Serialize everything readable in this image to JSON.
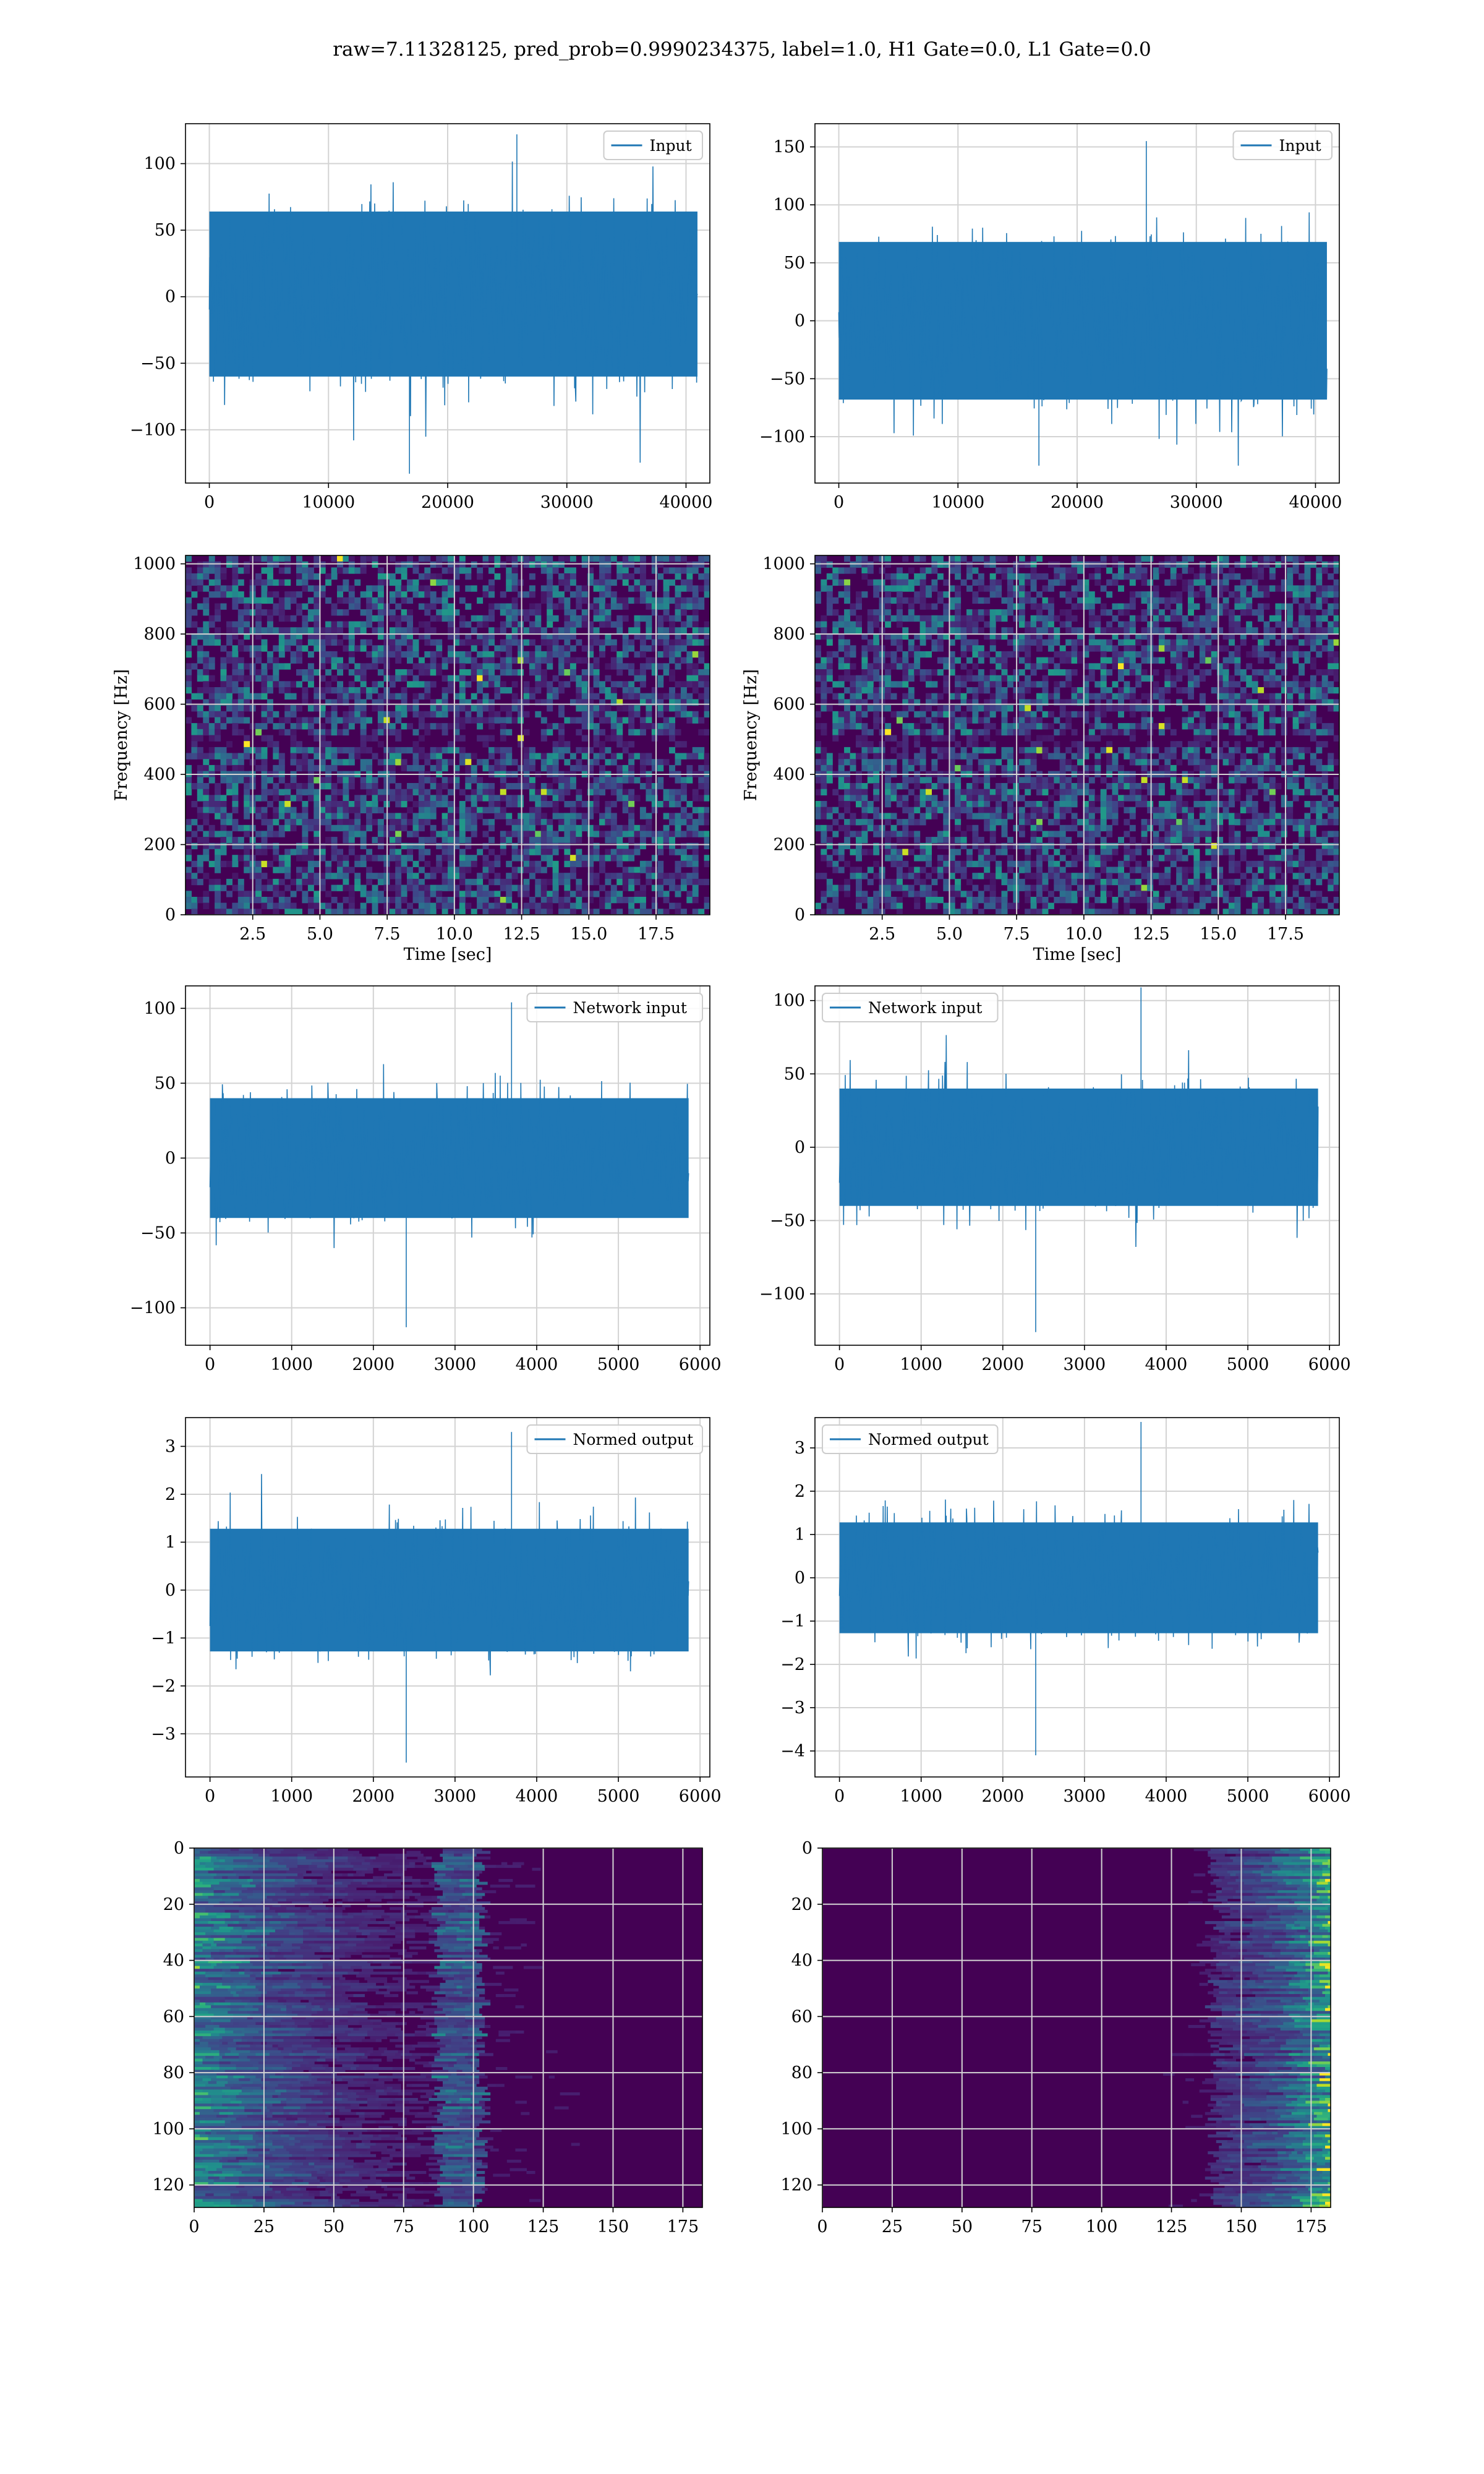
{
  "suptitle": "raw=7.11328125, pred_prob=0.9990234375, label=1.0, H1 Gate=0.0, L1 Gate=0.0",
  "colors": {
    "line": "#1f77b4",
    "grid": "#d3d3d3",
    "viridis_low": "#440154",
    "viridis_high": "#fde725"
  },
  "chart_data": [
    {
      "id": "input-h1",
      "type": "line",
      "legend": [
        "Input"
      ],
      "legend_loc": "upper right",
      "xlim": [
        -2000,
        42000
      ],
      "ylim": [
        -140,
        130
      ],
      "xticks": [
        0,
        10000,
        20000,
        30000,
        40000
      ],
      "yticks": [
        -100,
        -50,
        0,
        50,
        100
      ],
      "xlabel": "",
      "ylabel": "",
      "series": [
        {
          "name": "Input",
          "x_range": [
            0,
            40960
          ],
          "envelope_typical": [
            -75,
            80
          ],
          "peaks": [
            -133,
            122
          ]
        }
      ]
    },
    {
      "id": "input-l1",
      "type": "line",
      "legend": [
        "Input"
      ],
      "legend_loc": "upper right",
      "xlim": [
        -2000,
        42000
      ],
      "ylim": [
        -140,
        170
      ],
      "xticks": [
        0,
        10000,
        20000,
        30000,
        40000
      ],
      "yticks": [
        -100,
        -50,
        0,
        50,
        100,
        150
      ],
      "xlabel": "",
      "ylabel": "",
      "series": [
        {
          "name": "Input",
          "x_range": [
            0,
            40960
          ],
          "envelope_typical": [
            -85,
            85
          ],
          "peaks": [
            -125,
            155
          ]
        }
      ]
    },
    {
      "id": "spectrogram-h1",
      "type": "heatmap",
      "colormap": "viridis",
      "xlim": [
        0,
        19.5
      ],
      "ylim": [
        0,
        1024
      ],
      "xticks": [
        2.5,
        5.0,
        7.5,
        10.0,
        12.5,
        15.0,
        17.5
      ],
      "yticks": [
        0,
        200,
        400,
        600,
        800,
        1000
      ],
      "xtick_labels": [
        "2.5",
        "5.0",
        "7.5",
        "10.0",
        "12.5",
        "15.0",
        "17.5"
      ],
      "xlabel": "Time [sec]",
      "ylabel": "Frequency [Hz]",
      "dark_band_hz": 500
    },
    {
      "id": "spectrogram-l1",
      "type": "heatmap",
      "colormap": "viridis",
      "xlim": [
        0,
        19.5
      ],
      "ylim": [
        0,
        1024
      ],
      "xticks": [
        2.5,
        5.0,
        7.5,
        10.0,
        12.5,
        15.0,
        17.5
      ],
      "yticks": [
        0,
        200,
        400,
        600,
        800,
        1000
      ],
      "xtick_labels": [
        "2.5",
        "5.0",
        "7.5",
        "10.0",
        "12.5",
        "15.0",
        "17.5"
      ],
      "xlabel": "Time [sec]",
      "ylabel": "Frequency [Hz]",
      "dark_band_hz": 500
    },
    {
      "id": "network-input-h1",
      "type": "line",
      "legend": [
        "Network input"
      ],
      "legend_loc": "upper right",
      "xlim": [
        -300,
        6120
      ],
      "ylim": [
        -125,
        115
      ],
      "xticks": [
        0,
        1000,
        2000,
        3000,
        4000,
        5000,
        6000
      ],
      "yticks": [
        -100,
        -50,
        0,
        50,
        100
      ],
      "xlabel": "",
      "ylabel": "",
      "series": [
        {
          "name": "Network input",
          "x_range": [
            0,
            5860
          ],
          "envelope_typical": [
            -50,
            50
          ],
          "peaks": [
            -113,
            104
          ]
        }
      ]
    },
    {
      "id": "network-input-l1",
      "type": "line",
      "legend": [
        "Network input"
      ],
      "legend_loc": "upper left",
      "xlim": [
        -300,
        6120
      ],
      "ylim": [
        -135,
        110
      ],
      "xticks": [
        0,
        1000,
        2000,
        3000,
        4000,
        5000,
        6000
      ],
      "yticks": [
        -100,
        -50,
        0,
        50,
        100
      ],
      "xlabel": "",
      "ylabel": "",
      "series": [
        {
          "name": "Network input",
          "x_range": [
            0,
            5860
          ],
          "envelope_typical": [
            -50,
            50
          ],
          "peaks": [
            -126,
            109
          ]
        }
      ]
    },
    {
      "id": "normed-output-h1",
      "type": "line",
      "legend": [
        "Normed output"
      ],
      "legend_loc": "upper right",
      "xlim": [
        -300,
        6120
      ],
      "ylim": [
        -3.9,
        3.6
      ],
      "xticks": [
        0,
        1000,
        2000,
        3000,
        4000,
        5000,
        6000
      ],
      "yticks": [
        -3,
        -2,
        -1,
        0,
        1,
        2,
        3
      ],
      "xticklabels": [
        "0",
        "1000",
        "2000",
        "3000",
        "4000",
        "5000",
        "6000"
      ],
      "yticklabels": [
        "−3",
        "−2",
        "−1",
        "0",
        "1",
        "2",
        "3"
      ],
      "xlabel": "",
      "ylabel": "",
      "series": [
        {
          "name": "Normed output",
          "x_range": [
            0,
            5860
          ],
          "envelope_typical": [
            -1.6,
            1.6
          ],
          "peaks": [
            -3.6,
            3.3
          ]
        }
      ]
    },
    {
      "id": "normed-output-l1",
      "type": "line",
      "legend": [
        "Normed output"
      ],
      "legend_loc": "upper left",
      "xlim": [
        -300,
        6120
      ],
      "ylim": [
        -4.6,
        3.7
      ],
      "xticks": [
        0,
        1000,
        2000,
        3000,
        4000,
        5000,
        6000
      ],
      "yticks": [
        -4,
        -3,
        -2,
        -1,
        0,
        1,
        2,
        3
      ],
      "xticklabels": [
        "0",
        "1000",
        "2000",
        "3000",
        "4000",
        "5000",
        "6000"
      ],
      "yticklabels": [
        "−4",
        "−3",
        "−2",
        "−1",
        "0",
        "1",
        "2",
        "3"
      ],
      "xlabel": "",
      "ylabel": "",
      "series": [
        {
          "name": "Normed output",
          "x_range": [
            0,
            5860
          ],
          "envelope_typical": [
            -1.6,
            1.6
          ],
          "peaks": [
            -4.1,
            3.6
          ]
        }
      ]
    },
    {
      "id": "feature-map-h1",
      "type": "heatmap",
      "colormap": "viridis",
      "xlim": [
        0,
        182
      ],
      "ylim": [
        128,
        0
      ],
      "xticks": [
        0,
        25,
        50,
        75,
        100,
        125,
        150,
        175
      ],
      "yticks": [
        0,
        20,
        40,
        60,
        80,
        100,
        120
      ],
      "xlabel": "",
      "ylabel": "",
      "activity": "bright streaks concentrated at x 0-30 and around x 90-100"
    },
    {
      "id": "feature-map-l1",
      "type": "heatmap",
      "colormap": "viridis",
      "xlim": [
        0,
        182
      ],
      "ylim": [
        128,
        0
      ],
      "xticks": [
        0,
        25,
        50,
        75,
        100,
        125,
        150,
        175
      ],
      "yticks": [
        0,
        20,
        40,
        60,
        80,
        100,
        120
      ],
      "xlabel": "",
      "ylabel": "",
      "activity": "bright streaks concentrated at x 160-182"
    }
  ]
}
